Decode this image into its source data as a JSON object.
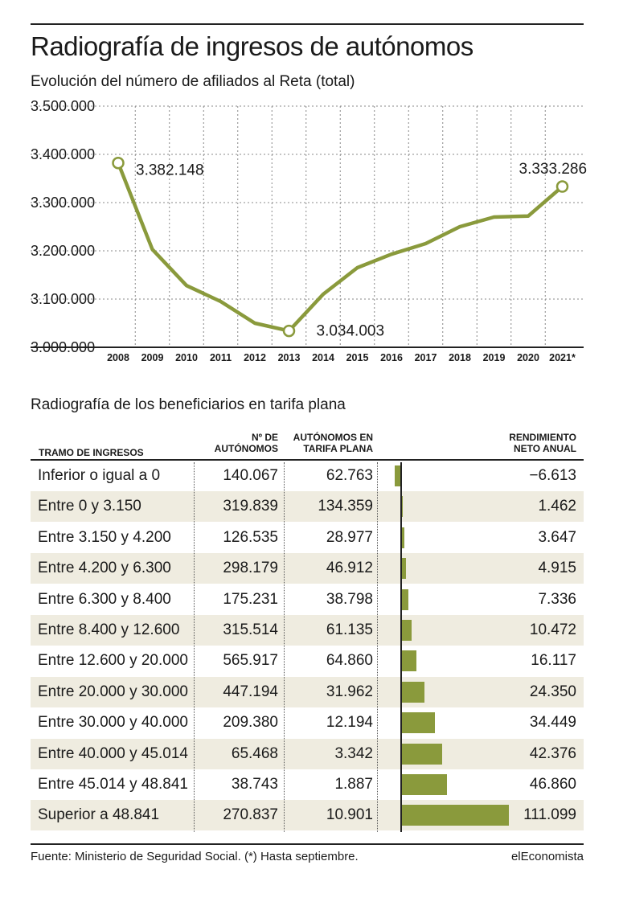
{
  "header": {
    "title": "Radiografía de ingresos de autónomos",
    "subtitle": "Evolución del número de afiliados al Reta (total)"
  },
  "chart_data": [
    {
      "type": "line",
      "x": [
        "2008",
        "2009",
        "2010",
        "2011",
        "2012",
        "2013",
        "2014",
        "2015",
        "2016",
        "2017",
        "2018",
        "2019",
        "2020",
        "2021*"
      ],
      "series": [
        {
          "values": [
            3382148,
            3203000,
            3128000,
            3095000,
            3050000,
            3034003,
            3110000,
            3165000,
            3193000,
            3215000,
            3250000,
            3270000,
            3272000,
            3333286
          ]
        }
      ],
      "ylim": [
        3000000,
        3500000
      ],
      "yticks": [
        3000000,
        3100000,
        3200000,
        3300000,
        3400000,
        3500000
      ],
      "ytick_labels": [
        "3.000.000",
        "3.100.000",
        "3.200.000",
        "3.300.000",
        "3.400.000",
        "3.500.000"
      ],
      "annotations": [
        {
          "x": "2008",
          "label": "3.382.148"
        },
        {
          "x": "2013",
          "label": "3.034.003"
        },
        {
          "x": "2021*",
          "label": "3.333.286"
        }
      ],
      "grid": true,
      "color": "#8a9a3c"
    },
    {
      "type": "bar",
      "categories": [
        "Inferior o igual a 0",
        "Entre 0 y 3.150",
        "Entre 3.150 y 4.200",
        "Entre 4.200 y 6.300",
        "Entre 6.300 y 8.400",
        "Entre 8.400 y 12.600",
        "Entre 12.600 y 20.000",
        "Entre 20.000 y 30.000",
        "Entre 30.000 y 40.000",
        "Entre 40.000 y 45.014",
        "Entre 45.014 y 48.841",
        "Superior a 48.841"
      ],
      "values": [
        -6613,
        1462,
        3647,
        4915,
        7336,
        10472,
        16117,
        24350,
        34449,
        42376,
        46860,
        111099
      ],
      "color": "#8a9a3c"
    }
  ],
  "table": {
    "title": "Radiografía de los beneficiarios en tarifa plana",
    "headers": {
      "tramo": "TRAMO DE INGRESOS",
      "num_1": "Nº DE",
      "num_2": "AUTÓNOMOS",
      "tarifa_1": "AUTÓNOMOS EN",
      "tarifa_2": "TARIFA PLANA",
      "rend_1": "RENDIMIENTO",
      "rend_2": "NETO ANUAL"
    },
    "rows": [
      {
        "tramo": "Inferior o igual a 0",
        "num": "140.067",
        "tarifa": "62.763",
        "rend": "−6.613",
        "rend_value": -6613
      },
      {
        "tramo": "Entre 0 y 3.150",
        "num": "319.839",
        "tarifa": "134.359",
        "rend": "1.462",
        "rend_value": 1462
      },
      {
        "tramo": "Entre 3.150 y 4.200",
        "num": "126.535",
        "tarifa": "28.977",
        "rend": "3.647",
        "rend_value": 3647
      },
      {
        "tramo": "Entre 4.200 y 6.300",
        "num": "298.179",
        "tarifa": "46.912",
        "rend": "4.915",
        "rend_value": 4915
      },
      {
        "tramo": "Entre 6.300 y 8.400",
        "num": "175.231",
        "tarifa": "38.798",
        "rend": "7.336",
        "rend_value": 7336
      },
      {
        "tramo": "Entre 8.400 y 12.600",
        "num": "315.514",
        "tarifa": "61.135",
        "rend": "10.472",
        "rend_value": 10472
      },
      {
        "tramo": "Entre 12.600 y 20.000",
        "num": "565.917",
        "tarifa": "64.860",
        "rend": "16.117",
        "rend_value": 16117
      },
      {
        "tramo": "Entre 20.000 y 30.000",
        "num": "447.194",
        "tarifa": "31.962",
        "rend": "24.350",
        "rend_value": 24350
      },
      {
        "tramo": "Entre 30.000 y 40.000",
        "num": "209.380",
        "tarifa": "12.194",
        "rend": "34.449",
        "rend_value": 34449
      },
      {
        "tramo": "Entre 40.000 y 45.014",
        "num": "65.468",
        "tarifa": "3.342",
        "rend": "42.376",
        "rend_value": 42376
      },
      {
        "tramo": "Entre 45.014 y 48.841",
        "num": "38.743",
        "tarifa": "1.887",
        "rend": "46.860",
        "rend_value": 46860
      },
      {
        "tramo": "Superior a 48.841",
        "num": "270.837",
        "tarifa": "10.901",
        "rend": "111.099",
        "rend_value": 111099
      }
    ]
  },
  "footer": {
    "source": "Fuente: Ministerio de Seguridad Social. (*) Hasta septiembre.",
    "brand": "elEconomista"
  }
}
